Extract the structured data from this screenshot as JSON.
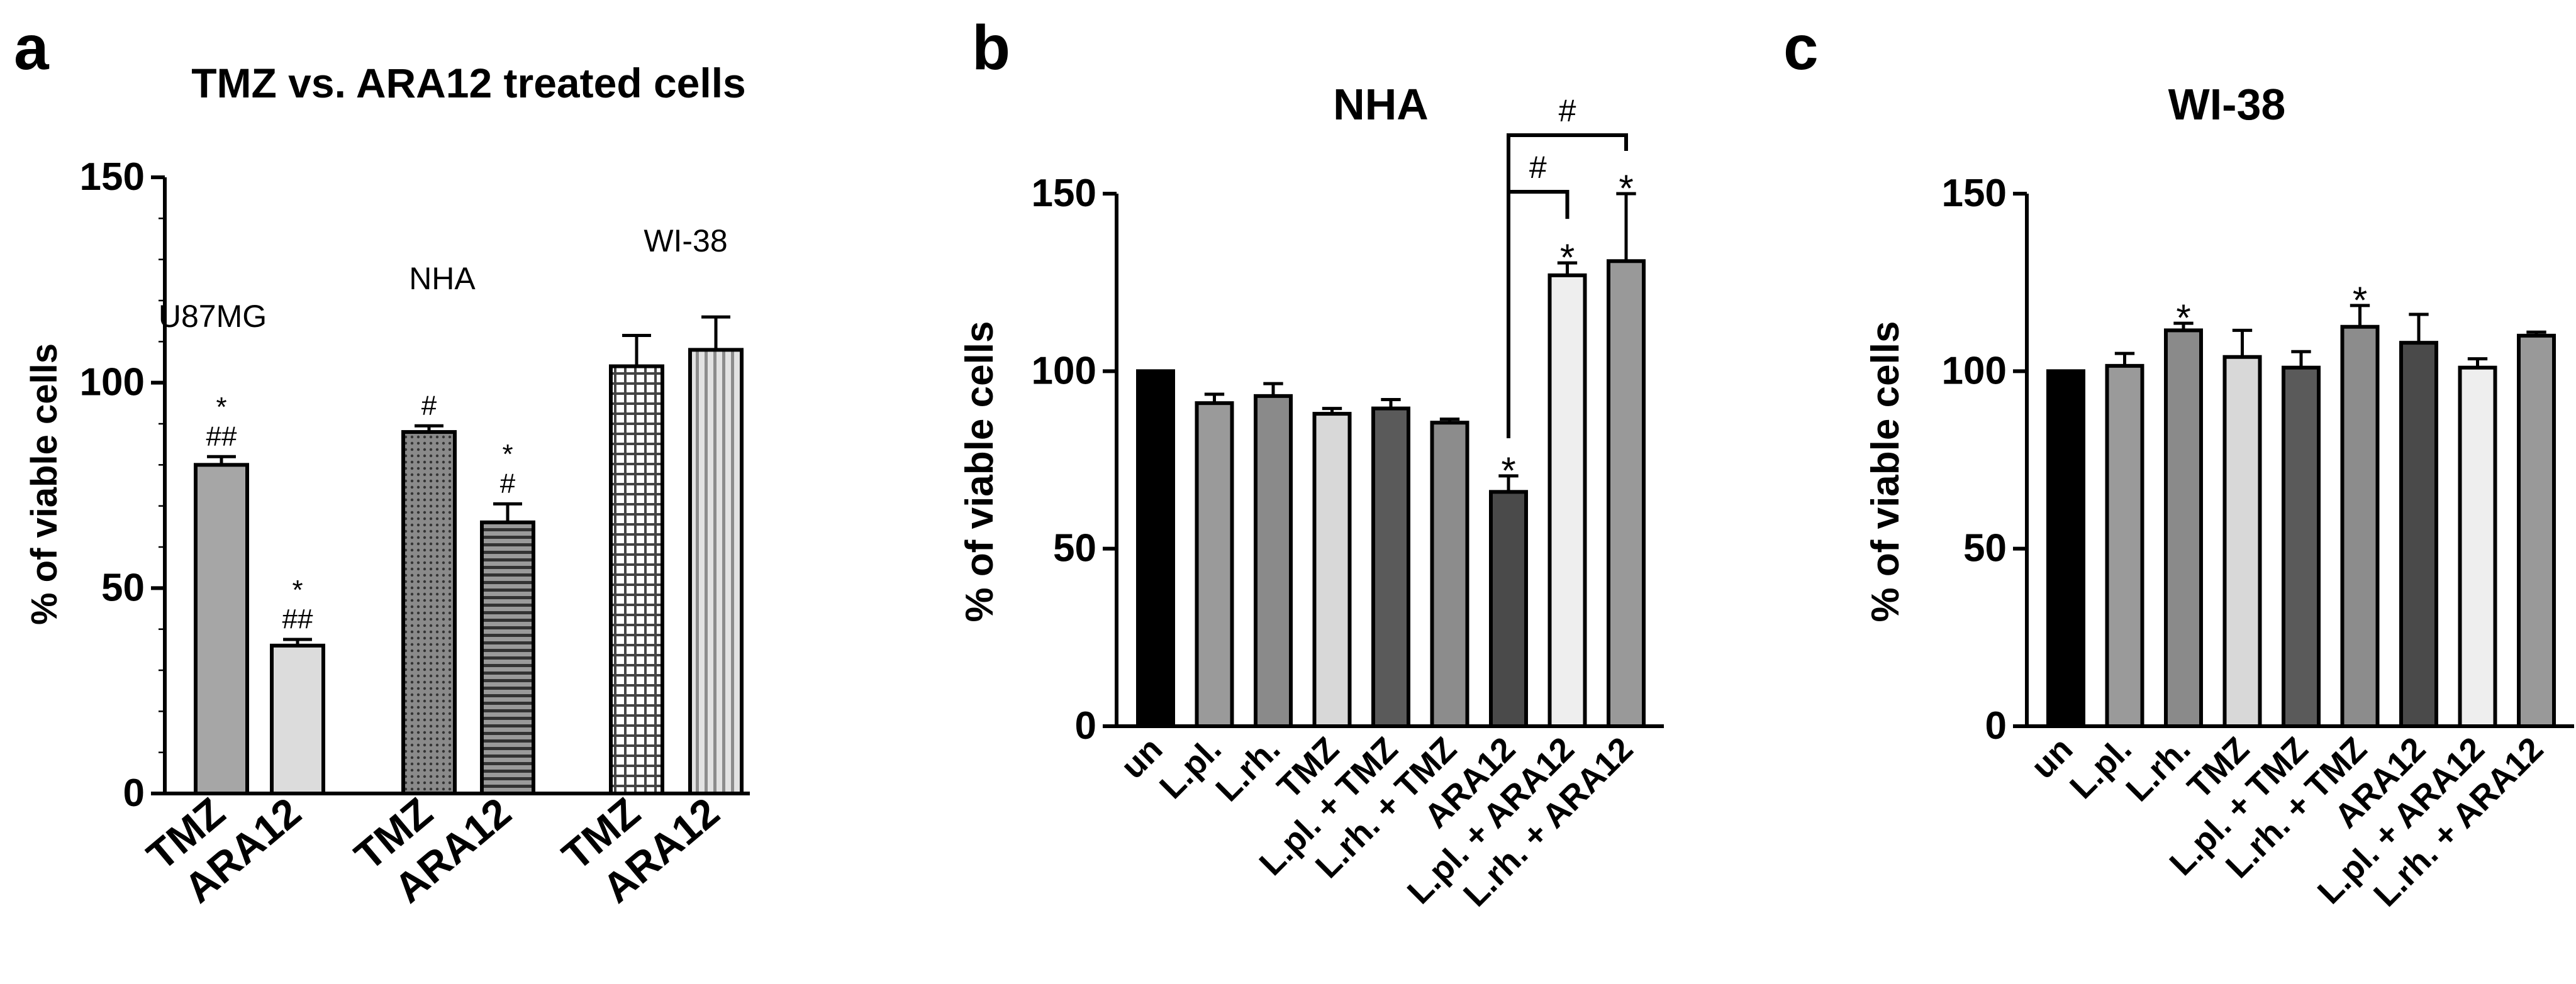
{
  "panel_letters": [
    "a",
    "b",
    "c"
  ],
  "chart_data": [
    {
      "type": "bar",
      "title": "TMZ vs. ARA12 treated cells",
      "ylabel": "% of viable cells",
      "xlabel": "",
      "ylim": [
        0,
        150
      ],
      "yticks": [
        0,
        50,
        100,
        150
      ],
      "group_labels": [
        "U87MG",
        "NHA",
        "WI-38"
      ],
      "categories": [
        "TMZ",
        "ARA12",
        "TMZ",
        "ARA12",
        "TMZ",
        "ARA12"
      ],
      "values": [
        80,
        36,
        88,
        66,
        104,
        108
      ],
      "errors": [
        2,
        1.5,
        1.5,
        4.5,
        7.5,
        8
      ],
      "annotations": [
        "*\n##",
        "*\n##",
        "#",
        "*\n#",
        "",
        ""
      ],
      "bar_styles": [
        {
          "fill": "#a6a6a6",
          "pattern": "none"
        },
        {
          "fill": "#dcdcdc",
          "pattern": "none"
        },
        {
          "fill": "#7a7a7a",
          "pattern": "dots"
        },
        {
          "fill": "#666666",
          "pattern": "hlines"
        },
        {
          "fill": "#ffffff",
          "pattern": "grid"
        },
        {
          "fill": "#d9d9d9",
          "pattern": "vlines"
        }
      ]
    },
    {
      "type": "bar",
      "title": "NHA",
      "ylabel": "% of viable cells",
      "xlabel": "",
      "ylim": [
        0,
        150
      ],
      "yticks": [
        0,
        50,
        100,
        150
      ],
      "categories": [
        "un",
        "L.pl.",
        "L.rh.",
        "TMZ",
        "L.pl. + TMZ",
        "L.rh. + TMZ",
        "ARA12",
        "L.pl. + ARA12",
        "L.rh. + ARA12"
      ],
      "values": [
        100,
        91,
        93,
        88,
        89.5,
        85.5,
        66,
        127,
        131
      ],
      "errors": [
        0,
        2.5,
        3.5,
        1.5,
        2.5,
        1,
        4.5,
        3.5,
        19
      ],
      "annotations": [
        "",
        "",
        "",
        "",
        "",
        "",
        "*",
        "*",
        "*"
      ],
      "bar_fills": [
        "#000000",
        "#9a9a9a",
        "#8a8a8a",
        "#d8d8d8",
        "#5a5a5a",
        "#8c8c8c",
        "#4a4a4a",
        "#eeeeee",
        "#999999"
      ],
      "comparisons": [
        {
          "from": 6,
          "to": 7,
          "label": "#"
        },
        {
          "from": 6,
          "to": 8,
          "label": "#"
        }
      ]
    },
    {
      "type": "bar",
      "title": "WI-38",
      "ylabel": "% of viable cells",
      "xlabel": "",
      "ylim": [
        0,
        150
      ],
      "yticks": [
        0,
        50,
        100,
        150
      ],
      "categories": [
        "un",
        "L.pl.",
        "L.rh.",
        "TMZ",
        "L.pl. + TMZ",
        "L.rh. + TMZ",
        "ARA12",
        "L.pl. + ARA12",
        "L.rh. + ARA12"
      ],
      "values": [
        100,
        101.5,
        111.5,
        104,
        101,
        112.5,
        108,
        101,
        110
      ],
      "errors": [
        0,
        3.5,
        2,
        7.5,
        4.5,
        6,
        8,
        2.5,
        1
      ],
      "annotations": [
        "",
        "",
        "*",
        "",
        "",
        "*",
        "",
        "",
        ""
      ],
      "bar_fills": [
        "#000000",
        "#9a9a9a",
        "#8a8a8a",
        "#d8d8d8",
        "#5a5a5a",
        "#8c8c8c",
        "#4a4a4a",
        "#eeeeee",
        "#999999"
      ]
    }
  ]
}
